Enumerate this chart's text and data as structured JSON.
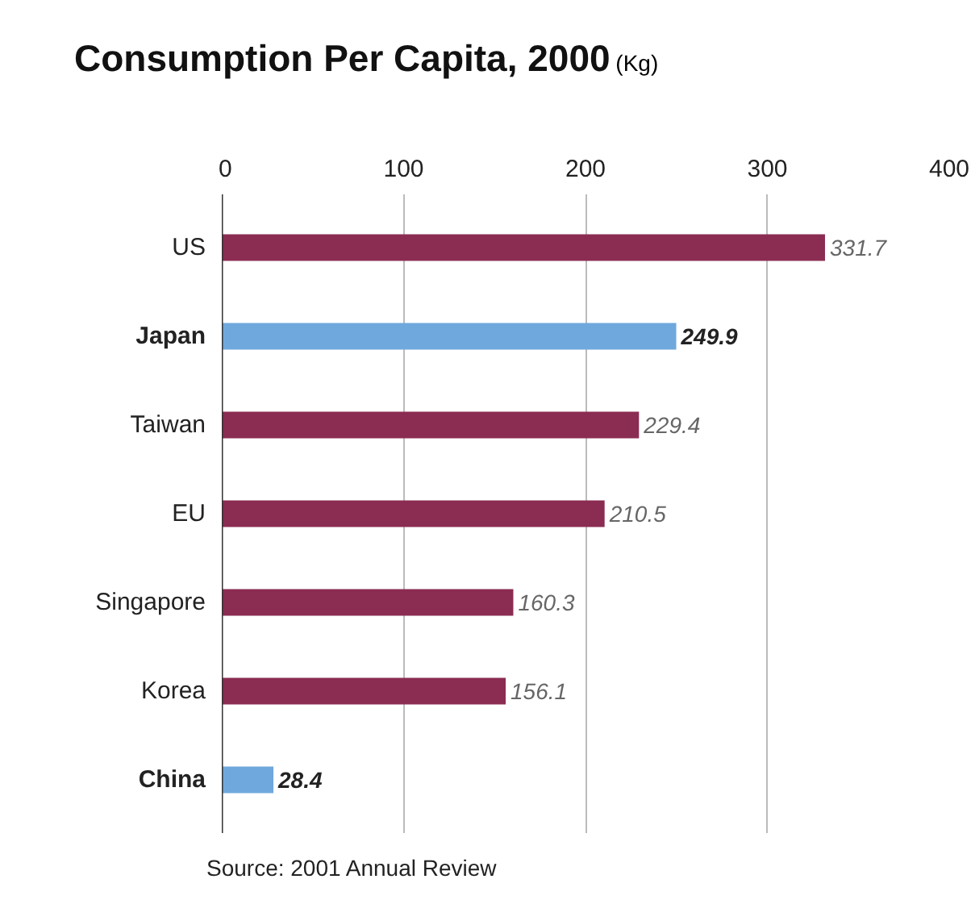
{
  "chart_data": {
    "type": "bar",
    "orientation": "horizontal",
    "title": "Consumption Per Capita, 2000",
    "xlabel": "(Kg)",
    "categories": [
      "US",
      "Japan",
      "Taiwan",
      "EU",
      "Singapore",
      "Korea",
      "China"
    ],
    "values": [
      331.7,
      249.9,
      229.4,
      210.5,
      160.3,
      156.1,
      28.4
    ],
    "colors": [
      "#8b2c52",
      "#6fa8dc",
      "#8b2c52",
      "#8b2c52",
      "#8b2c52",
      "#8b2c52",
      "#6fa8dc"
    ],
    "xlim": [
      0,
      400
    ],
    "xticks": [
      0,
      100,
      200,
      300,
      400
    ],
    "grid": "x",
    "data_labels": true,
    "annotations": [
      "Source: 2001 Annual Review"
    ]
  }
}
